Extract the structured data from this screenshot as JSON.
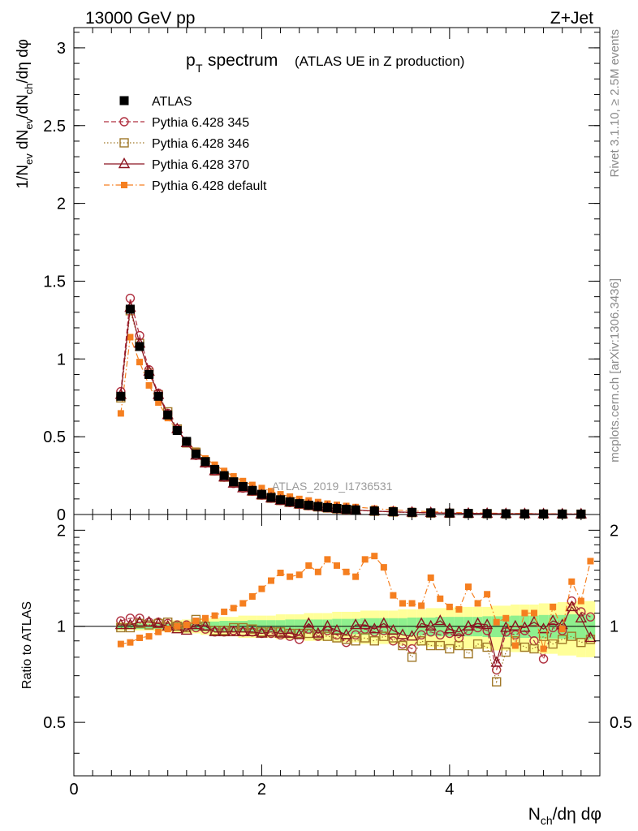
{
  "header": {
    "energy_label": "13000 GeV pp",
    "process_label": "Z+Jet"
  },
  "side": {
    "rivet_label": "Rivet 3.1.10, ≥ 2.5M events",
    "mcplots_label": "mcplots.cern.ch [arXiv:1306.3436]"
  },
  "chart_data": [
    {
      "type": "scatter",
      "panel": "main",
      "title_main": "p",
      "title_sub": "T",
      "title_text": "spectrum",
      "title_paren": "(ATLAS UE in Z production)",
      "ylabel": "1/N_ev dN_ev/dN_ch/dη dφ",
      "analysis_label": "ATLAS_2019_I1736531",
      "xlim": [
        0,
        5.6
      ],
      "ylim": [
        0,
        3.13
      ],
      "yticks": [
        0,
        0.5,
        1,
        1.5,
        2,
        2.5,
        3
      ],
      "ytick_labels": [
        "0",
        "0.5",
        "1",
        "1.5",
        "2",
        "2.5",
        "3"
      ],
      "x": [
        0.5,
        0.6,
        0.7,
        0.8,
        0.9,
        1.0,
        1.1,
        1.2,
        1.3,
        1.4,
        1.5,
        1.6,
        1.7,
        1.8,
        1.9,
        2.0,
        2.1,
        2.2,
        2.3,
        2.4,
        2.5,
        2.6,
        2.7,
        2.8,
        2.9,
        3.0,
        3.2,
        3.4,
        3.6,
        3.8,
        4.0,
        4.2,
        4.4,
        4.6,
        4.8,
        5.0,
        5.2,
        5.4
      ],
      "legend_position": "top-left",
      "series": [
        {
          "name": "ATLAS",
          "color": "#000000",
          "marker": "filled-square",
          "line": "none",
          "values": [
            0.76,
            1.32,
            1.08,
            0.9,
            0.76,
            0.64,
            0.54,
            0.47,
            0.39,
            0.34,
            0.29,
            0.25,
            0.21,
            0.18,
            0.155,
            0.13,
            0.11,
            0.095,
            0.082,
            0.07,
            0.06,
            0.052,
            0.045,
            0.039,
            0.034,
            0.03,
            0.023,
            0.018,
            0.014,
            0.011,
            0.009,
            0.007,
            0.006,
            0.005,
            0.004,
            0.0035,
            0.003,
            0.0025
          ]
        },
        {
          "name": "Pythia 6.428 345",
          "color": "#b03040",
          "marker": "open-circle",
          "line": "dashed",
          "values": [
            0.79,
            1.39,
            1.15,
            0.93,
            0.78,
            0.65,
            0.55,
            0.47,
            0.38,
            0.33,
            0.28,
            0.24,
            0.2,
            0.17,
            0.15,
            0.125,
            0.105,
            0.09,
            0.077,
            0.066,
            0.057,
            0.049,
            0.043,
            0.037,
            0.032,
            0.028,
            0.022,
            0.017,
            0.013,
            0.01,
            0.008,
            0.007,
            0.006,
            0.005,
            0.004,
            0.0033,
            0.0028,
            0.0024
          ]
        },
        {
          "name": "Pythia 6.428 346",
          "color": "#a07828",
          "marker": "open-square",
          "line": "dotted",
          "values": [
            0.75,
            1.31,
            1.1,
            0.91,
            0.77,
            0.66,
            0.55,
            0.46,
            0.4,
            0.34,
            0.28,
            0.24,
            0.21,
            0.18,
            0.15,
            0.125,
            0.105,
            0.09,
            0.078,
            0.066,
            0.057,
            0.049,
            0.042,
            0.036,
            0.031,
            0.027,
            0.021,
            0.016,
            0.012,
            0.0095,
            0.0078,
            0.0064,
            0.0053,
            0.0044,
            0.0036,
            0.003,
            0.0026,
            0.0022
          ]
        },
        {
          "name": "Pythia 6.428 370",
          "color": "#8c1420",
          "marker": "open-triangle",
          "line": "solid",
          "values": [
            0.77,
            1.33,
            1.1,
            0.92,
            0.77,
            0.64,
            0.55,
            0.46,
            0.38,
            0.33,
            0.28,
            0.24,
            0.2,
            0.17,
            0.15,
            0.125,
            0.105,
            0.09,
            0.078,
            0.066,
            0.058,
            0.05,
            0.044,
            0.038,
            0.033,
            0.029,
            0.022,
            0.017,
            0.014,
            0.011,
            0.0085,
            0.007,
            0.006,
            0.005,
            0.004,
            0.0034,
            0.003,
            0.0025
          ]
        },
        {
          "name": "Pythia 6.428 default",
          "color": "#f57f20",
          "marker": "filled-square-small",
          "line": "dashdot",
          "values": [
            0.65,
            1.14,
            0.98,
            0.83,
            0.72,
            0.62,
            0.54,
            0.47,
            0.41,
            0.36,
            0.32,
            0.28,
            0.245,
            0.215,
            0.19,
            0.17,
            0.15,
            0.13,
            0.115,
            0.1,
            0.09,
            0.08,
            0.07,
            0.062,
            0.055,
            0.048,
            0.038,
            0.03,
            0.023,
            0.018,
            0.014,
            0.011,
            0.009,
            0.0075,
            0.0062,
            0.005,
            0.0042,
            0.0036
          ]
        }
      ]
    },
    {
      "type": "scatter",
      "panel": "ratio",
      "ylabel": "Ratio to ATLAS",
      "xlabel": "N_ch/dη dφ",
      "xlim": [
        0,
        5.6
      ],
      "ylim": [
        0.34,
        2.24
      ],
      "xticks": [
        0,
        2,
        4
      ],
      "xtick_labels": [
        "0",
        "2",
        "4"
      ],
      "yticks": [
        0.5,
        1,
        2
      ],
      "ytick_labels": [
        "0.5",
        "1",
        "2"
      ],
      "x": [
        0.5,
        0.6,
        0.7,
        0.8,
        0.9,
        1.0,
        1.1,
        1.2,
        1.3,
        1.4,
        1.5,
        1.6,
        1.7,
        1.8,
        1.9,
        2.0,
        2.1,
        2.2,
        2.3,
        2.4,
        2.5,
        2.6,
        2.7,
        2.8,
        2.9,
        3.0,
        3.1,
        3.2,
        3.3,
        3.4,
        3.5,
        3.6,
        3.7,
        3.8,
        3.9,
        4.0,
        4.1,
        4.2,
        4.3,
        4.4,
        4.5,
        4.6,
        4.7,
        4.8,
        4.9,
        5.0,
        5.1,
        5.2,
        5.3,
        5.4,
        5.5
      ],
      "band_stat_halfwidth": [
        0.02,
        0.015,
        0.02,
        0.02,
        0.02,
        0.02,
        0.025,
        0.03,
        0.03,
        0.035,
        0.035,
        0.04,
        0.04,
        0.04,
        0.045,
        0.045,
        0.045,
        0.045,
        0.05,
        0.05,
        0.05,
        0.05,
        0.05,
        0.055,
        0.055,
        0.055,
        0.06,
        0.06,
        0.06,
        0.06,
        0.06,
        0.065,
        0.065,
        0.065,
        0.07,
        0.07,
        0.07,
        0.07,
        0.07,
        0.075,
        0.075,
        0.075,
        0.08,
        0.08,
        0.08,
        0.085,
        0.085,
        0.085,
        0.09,
        0.09,
        0.09
      ],
      "band_total_halfwidth": [
        0.03,
        0.025,
        0.03,
        0.03,
        0.035,
        0.04,
        0.045,
        0.05,
        0.05,
        0.06,
        0.06,
        0.07,
        0.07,
        0.08,
        0.08,
        0.08,
        0.08,
        0.09,
        0.09,
        0.09,
        0.1,
        0.1,
        0.1,
        0.11,
        0.11,
        0.11,
        0.12,
        0.12,
        0.12,
        0.12,
        0.13,
        0.13,
        0.13,
        0.14,
        0.14,
        0.14,
        0.15,
        0.15,
        0.15,
        0.15,
        0.16,
        0.16,
        0.17,
        0.17,
        0.17,
        0.18,
        0.18,
        0.19,
        0.19,
        0.2,
        0.2
      ],
      "series": [
        {
          "name": "Pythia 6.428 345",
          "color": "#b03040",
          "marker": "open-circle",
          "line": "dashed",
          "values": [
            1.04,
            1.06,
            1.06,
            1.03,
            1.03,
            1.02,
            1.01,
            1.01,
            0.99,
            0.98,
            0.96,
            0.96,
            0.97,
            0.96,
            0.96,
            0.95,
            0.95,
            0.94,
            0.93,
            0.91,
            0.98,
            0.93,
            0.97,
            0.94,
            0.89,
            0.94,
            0.98,
            0.96,
            0.97,
            0.9,
            0.88,
            0.85,
            0.94,
            0.96,
            0.94,
            0.95,
            0.92,
            0.97,
            0.99,
            0.97,
            0.73,
            0.96,
            0.94,
            0.97,
            0.9,
            0.79,
            0.99,
            0.97,
            1.2,
            1.11,
            1.07
          ]
        },
        {
          "name": "Pythia 6.428 346",
          "color": "#a07828",
          "marker": "open-square",
          "line": "dotted",
          "values": [
            0.99,
            0.99,
            1.02,
            1.01,
            1.02,
            1.03,
            1.0,
            0.99,
            1.05,
            1.0,
            0.97,
            0.97,
            0.99,
            0.99,
            0.98,
            0.96,
            0.96,
            0.96,
            0.95,
            0.95,
            0.95,
            0.94,
            0.93,
            0.92,
            0.91,
            0.9,
            0.92,
            0.9,
            0.93,
            0.92,
            0.87,
            0.8,
            0.9,
            0.87,
            0.87,
            0.85,
            0.87,
            0.82,
            0.88,
            0.86,
            0.67,
            0.83,
            0.9,
            0.86,
            0.85,
            0.93,
            0.88,
            0.91,
            0.93,
            0.89,
            0.91
          ]
        },
        {
          "name": "Pythia 6.428 370",
          "color": "#8c1420",
          "marker": "open-triangle",
          "line": "solid",
          "values": [
            1.01,
            1.01,
            1.03,
            1.03,
            1.02,
            1.0,
            0.98,
            0.97,
            1.01,
            1.0,
            0.96,
            0.96,
            0.96,
            0.96,
            0.96,
            0.95,
            0.96,
            0.95,
            0.95,
            0.94,
            1.02,
            0.95,
            1.0,
            0.97,
            0.94,
            1.01,
            1.01,
            0.98,
            1.02,
            0.97,
            0.94,
            0.93,
            1.02,
            1.0,
            1.04,
            0.98,
            0.96,
            1.0,
            1.02,
            1.01,
            0.77,
            0.99,
            1.0,
            0.99,
            1.03,
            0.98,
            1.04,
            1.01,
            1.15,
            1.06,
            0.92
          ]
        },
        {
          "name": "Pythia 6.428 default",
          "color": "#f57f20",
          "marker": "filled-square-small",
          "line": "dashdot",
          "values": [
            0.88,
            0.89,
            0.92,
            0.93,
            0.96,
            0.98,
            1.0,
            1.01,
            1.04,
            1.06,
            1.08,
            1.11,
            1.14,
            1.18,
            1.24,
            1.31,
            1.39,
            1.47,
            1.43,
            1.45,
            1.55,
            1.48,
            1.62,
            1.55,
            1.48,
            1.43,
            1.62,
            1.66,
            1.53,
            1.25,
            1.18,
            1.18,
            1.16,
            1.42,
            1.22,
            1.15,
            1.13,
            1.33,
            1.18,
            1.26,
            1.03,
            1.06,
            0.87,
            1.1,
            1.1,
            0.85,
            1.15,
            0.98,
            1.38,
            1.2,
            1.6
          ]
        }
      ]
    }
  ]
}
